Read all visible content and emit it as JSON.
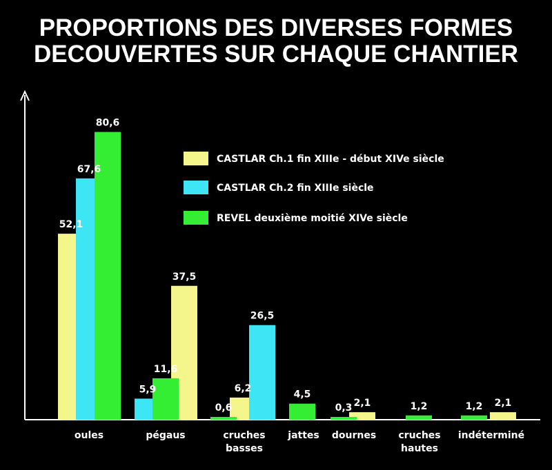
{
  "title": {
    "line1": "PROPORTIONS DES DIVERSES FORMES",
    "line2": "DECOUVERTES SUR CHAQUE CHANTIER"
  },
  "colors": {
    "background": "#000000",
    "castlar1": "#f4f58a",
    "castlar2": "#3ee6f5",
    "revel": "#33ee33",
    "text": "#ffffff"
  },
  "chart_data": {
    "type": "bar",
    "title": "PROPORTIONS DES DIVERSES FORMES DECOUVERTES SUR CHAQUE CHANTIER",
    "categories": [
      [
        "oules"
      ],
      [
        "pégaus"
      ],
      [
        "cruches",
        "basses"
      ],
      [
        "jattes"
      ],
      [
        "dournes"
      ],
      [
        "cruches",
        "hautes"
      ],
      [
        "indéterminé"
      ]
    ],
    "series": [
      {
        "name": "CASTLAR Ch.1 fin XIIIe - début XIVe siècle",
        "color": "#f4f58a",
        "values": [
          52.1,
          37.5,
          6.2,
          null,
          2.1,
          null,
          2.1
        ],
        "labels": [
          "52,1",
          "37,5",
          "6,2",
          "",
          "2,1",
          "",
          "2,1"
        ]
      },
      {
        "name": "CASTLAR Ch.2 fin XIIIe siècle",
        "color": "#3ee6f5",
        "values": [
          67.6,
          5.9,
          26.5,
          null,
          null,
          null,
          null
        ],
        "labels": [
          "67,6",
          "5,9",
          "26,5",
          "",
          "",
          "",
          ""
        ]
      },
      {
        "name": "REVEL deuxième moitié XIVe siècle",
        "color": "#33ee33",
        "values": [
          80.6,
          11.6,
          0.6,
          4.5,
          0.3,
          1.2,
          1.2
        ],
        "labels": [
          "80,6",
          "11,6",
          "0,6",
          "4,5",
          "0,3",
          "1,2",
          "1,2"
        ]
      }
    ],
    "xlabel": "",
    "ylabel": "",
    "ylim": [
      0,
      90
    ],
    "grid": false,
    "legend_position": "top-right"
  }
}
